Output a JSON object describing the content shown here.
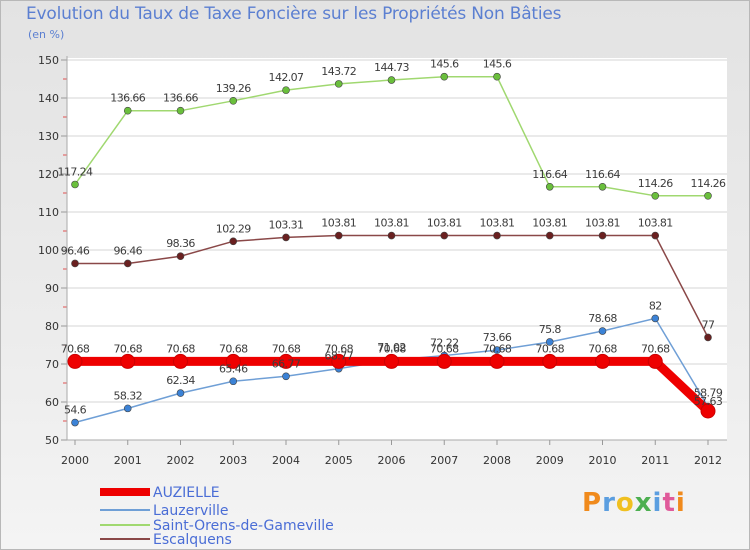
{
  "title": "Evolution du Taux de Taxe Foncière sur les Propriétés Non Bâties",
  "unit_label": "(en %)",
  "logo_text": "Proxiti",
  "chart_data": {
    "type": "line",
    "x": [
      "2000",
      "2001",
      "2002",
      "2003",
      "2004",
      "2005",
      "2006",
      "2007",
      "2008",
      "2009",
      "2010",
      "2011",
      "2012"
    ],
    "ylim": [
      50,
      150
    ],
    "yticks": [
      50,
      60,
      70,
      80,
      90,
      100,
      110,
      120,
      130,
      140,
      150
    ],
    "grid": "horizontal",
    "legend_position": "bottom-left",
    "series": [
      {
        "name": "AUZIELLE",
        "color": "#ee0000",
        "line_width": 9,
        "marker_radius": 7,
        "values": [
          70.68,
          70.68,
          70.68,
          70.68,
          70.68,
          70.68,
          70.68,
          70.68,
          70.68,
          70.68,
          70.68,
          70.68,
          57.63
        ],
        "labels": [
          "70.68",
          "70.68",
          "70.68",
          "70.68",
          "70.68",
          "70.68",
          "70.68",
          "70.68",
          "70.68",
          "70.68",
          "70.68",
          "70.68",
          "57.63"
        ]
      },
      {
        "name": "Lauzerville",
        "color": "#6f9fd6",
        "line_width": 1.5,
        "marker_radius": 3.5,
        "marker_color": "#3b82d6",
        "values": [
          54.6,
          58.32,
          62.34,
          65.46,
          66.77,
          68.77,
          71.02,
          72.22,
          73.66,
          75.8,
          78.68,
          82,
          58.79
        ],
        "labels": [
          "54.6",
          "58.32",
          "62.34",
          "65.46",
          "66.77",
          "68.77",
          "71.02",
          "72.22",
          "73.66",
          "75.8",
          "78.68",
          "82",
          "58.79"
        ]
      },
      {
        "name": "Saint-Orens-de-Gameville",
        "color": "#a0d870",
        "line_width": 1.5,
        "marker_radius": 3.5,
        "marker_color": "#6abf3c",
        "values": [
          117.24,
          136.66,
          136.66,
          139.26,
          142.07,
          143.72,
          144.73,
          145.6,
          145.6,
          116.64,
          116.64,
          114.26,
          114.26
        ],
        "labels": [
          "117.24",
          "136.66",
          "136.66",
          "139.26",
          "142.07",
          "143.72",
          "144.73",
          "145.6",
          "145.6",
          "116.64",
          "116.64",
          "114.26",
          "114.26"
        ]
      },
      {
        "name": "Escalquens",
        "color": "#8a4848",
        "line_width": 1.5,
        "marker_radius": 3.5,
        "marker_color": "#6a2020",
        "values": [
          96.46,
          96.46,
          98.36,
          102.29,
          103.31,
          103.81,
          103.81,
          103.81,
          103.81,
          103.81,
          103.81,
          103.81,
          77
        ],
        "labels": [
          "96.46",
          "96.46",
          "98.36",
          "102.29",
          "103.31",
          "103.81",
          "103.81",
          "103.81",
          "103.81",
          "103.81",
          "103.81",
          "103.81",
          "77"
        ]
      }
    ]
  }
}
